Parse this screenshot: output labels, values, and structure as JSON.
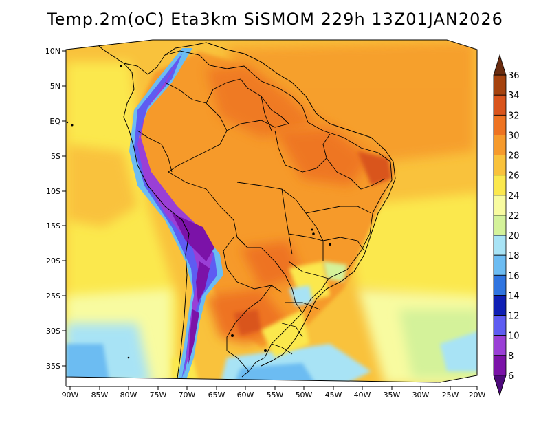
{
  "title": "Temp.2m(oC) Eta3km SiSMOM 229h 13Z01JAN2026",
  "map": {
    "variable": "2 m air temperature",
    "unit": "oC",
    "lat_labels": [
      "10N",
      "5N",
      "EQ",
      "5S",
      "10S",
      "15S",
      "20S",
      "25S",
      "30S",
      "35S"
    ],
    "lon_labels": [
      "90W",
      "85W",
      "80W",
      "75W",
      "70W",
      "65W",
      "60W",
      "55W",
      "50W",
      "45W",
      "40W",
      "35W",
      "30W",
      "25W",
      "20W"
    ]
  },
  "colorbar": {
    "labels": [
      "36",
      "34",
      "32",
      "30",
      "28",
      "26",
      "24",
      "22",
      "20",
      "18",
      "16",
      "14",
      "12",
      "10",
      "8",
      "6"
    ],
    "colors": [
      "#6a2c0f",
      "#a5420e",
      "#d9541c",
      "#ee7322",
      "#f69a2c",
      "#f9c23c",
      "#fbe84e",
      "#f8fba0",
      "#d4f29a",
      "#a8e3f5",
      "#6cbcf2",
      "#2f74e0",
      "#0f1fb4",
      "#5e5cf2",
      "#9a3fd6",
      "#7b12a8",
      "#4d0a7a"
    ]
  }
}
